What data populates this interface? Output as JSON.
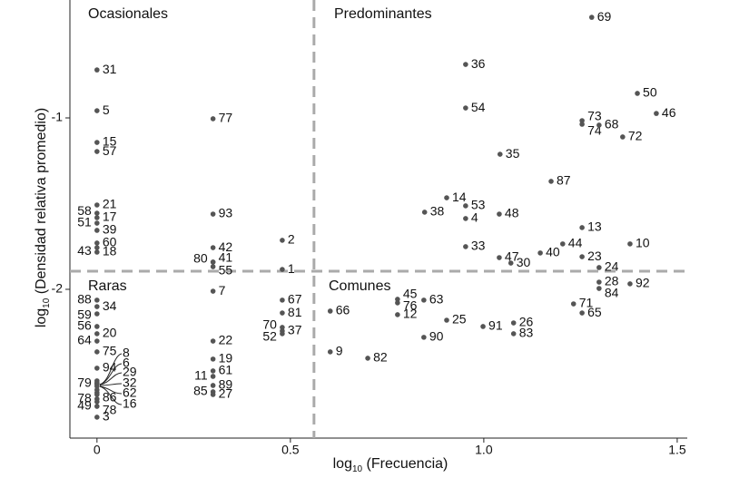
{
  "chart_data": {
    "type": "scatter",
    "x_label": {
      "base": "log",
      "sub": "10",
      "text": " (Frecuencia)"
    },
    "y_label": {
      "base": "log",
      "sub": "10",
      "text": " (Densidad relativa promedio)"
    },
    "quadrants": [
      "Ocasionales",
      "Predominantes",
      "Raras",
      "Comunes"
    ],
    "thresholds": {
      "x": 0.561,
      "y": -1.894
    },
    "xlim": [
      -0.07,
      1.526
    ],
    "ylim": [
      -2.868,
      -0.312
    ],
    "xticks": [
      0,
      0.5,
      {
        "value": 1,
        "label": "1.0"
      },
      1.5
    ],
    "yticks": [
      -1,
      -2
    ],
    "color": "#555555",
    "labels": [
      "69",
      "36",
      "50",
      "46",
      "73",
      "74",
      "68",
      "72",
      "54",
      "35",
      "87",
      "14",
      "53",
      "38",
      "4",
      "48",
      "13",
      "10",
      "33",
      "44",
      "40",
      "47",
      "30",
      "23",
      "24",
      "28",
      "84",
      "92",
      "71",
      "65",
      "45",
      "76",
      "63",
      "12",
      "66",
      "25",
      "91",
      "26",
      "83",
      "90",
      "9",
      "82",
      "2",
      "1",
      "67",
      "81",
      "70",
      "37",
      "52",
      "77",
      "93",
      "42",
      "80",
      "41",
      "55",
      "7",
      "22",
      "19",
      "61",
      "11",
      "89",
      "85",
      "27",
      "31",
      "5",
      "15",
      "57",
      "21",
      "58",
      "17",
      "51",
      "39",
      "60",
      "43",
      "18",
      "88",
      "34",
      "59",
      "56",
      "20",
      "64",
      "75",
      "94",
      "8",
      "6",
      "29",
      "32",
      "79",
      "86",
      "62",
      "16",
      "78",
      "78",
      "49",
      "3"
    ],
    "x": [
      1.279,
      0.953,
      1.397,
      1.446,
      1.254,
      1.254,
      1.298,
      1.359,
      0.953,
      1.042,
      1.174,
      0.904,
      0.953,
      0.847,
      0.953,
      1.04,
      1.254,
      1.378,
      0.953,
      1.204,
      1.146,
      1.04,
      1.07,
      1.254,
      1.298,
      1.298,
      1.298,
      1.378,
      1.232,
      1.254,
      0.777,
      0.777,
      0.845,
      0.777,
      0.603,
      0.904,
      0.998,
      1.077,
      1.077,
      0.845,
      0.603,
      0.7,
      0.479,
      0.479,
      0.479,
      0.479,
      0.479,
      0.479,
      0.479,
      0.3,
      0.3,
      0.3,
      0.3,
      0.3,
      0.3,
      0.3,
      0.3,
      0.3,
      0.3,
      0.3,
      0.3,
      0.3,
      0.3,
      0,
      0,
      0,
      0,
      0,
      0,
      0,
      0,
      0,
      0,
      0,
      0,
      0,
      0,
      0,
      0,
      0,
      0,
      0,
      0,
      0,
      0,
      0,
      0,
      0,
      0,
      0,
      0,
      0,
      0,
      0,
      0
    ],
    "y": [
      -0.413,
      -0.688,
      -0.857,
      -0.974,
      -1.016,
      -1.037,
      -1.042,
      -1.111,
      -0.942,
      -1.212,
      -1.37,
      -1.466,
      -1.513,
      -1.55,
      -1.587,
      -1.561,
      -1.64,
      -1.735,
      -1.751,
      -1.735,
      -1.788,
      -1.815,
      -1.847,
      -1.81,
      -1.873,
      -1.958,
      -1.995,
      -1.968,
      -2.085,
      -2.138,
      -2.058,
      -2.079,
      -2.063,
      -2.148,
      -2.127,
      -2.18,
      -2.217,
      -2.196,
      -2.259,
      -2.28,
      -2.365,
      -2.402,
      -1.714,
      -1.884,
      -2.063,
      -2.138,
      -2.222,
      -2.243,
      -2.259,
      -1.005,
      -1.561,
      -1.757,
      -1.841,
      -1.841,
      -1.868,
      -2.011,
      -2.302,
      -2.407,
      -2.476,
      -2.508,
      -2.561,
      -2.598,
      -2.614,
      -0.72,
      -0.958,
      -1.143,
      -1.196,
      -1.508,
      -1.556,
      -1.582,
      -1.614,
      -1.656,
      -1.73,
      -1.757,
      -1.783,
      -2.063,
      -2.101,
      -2.143,
      -2.217,
      -2.259,
      -2.302,
      -2.365,
      -2.46,
      -2.534,
      -2.545,
      -2.555,
      -2.566,
      -2.55,
      -2.603,
      -2.587,
      -2.614,
      -2.64,
      -2.656,
      -2.683,
      -2.746
    ]
  }
}
